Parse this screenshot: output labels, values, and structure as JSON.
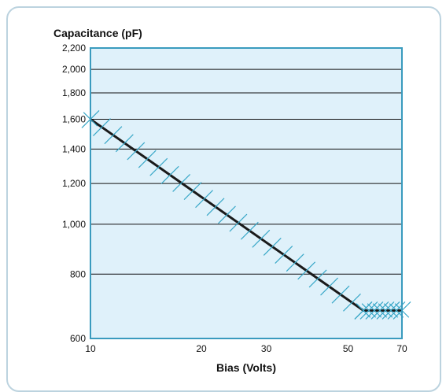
{
  "chart_data": {
    "type": "line",
    "title": "Capacitance (pF)",
    "xlabel": "Bias (Volts)",
    "ylabel": "Capacitance (pF)",
    "x_scale": "log",
    "y_scale": "log",
    "xlim": [
      10,
      70
    ],
    "ylim": [
      600,
      2200
    ],
    "x_ticks": [
      10,
      20,
      30,
      50,
      70
    ],
    "x_tick_labels": [
      "10",
      "20",
      "30",
      "50",
      "70"
    ],
    "y_ticks": [
      600,
      800,
      1000,
      1200,
      1400,
      1600,
      1800,
      2000,
      2200
    ],
    "y_tick_labels": [
      "600",
      "800",
      "1,000",
      "1,200",
      "1,400",
      "1,600",
      "1,800",
      "2,000",
      "2,200"
    ],
    "grid": "horizontal",
    "series": [
      {
        "x": [
          10,
          55,
          70
        ],
        "y": [
          1600,
          680,
          680
        ]
      }
    ],
    "colors": {
      "plot_background": "#dff1fa",
      "plot_border": "#3a9bbe",
      "line": "#1a1a1a",
      "markers": "#3aa8c8",
      "frame_border": "#bcd3df"
    }
  }
}
